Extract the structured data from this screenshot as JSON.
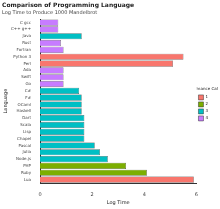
{
  "chart_data": {
    "type": "bar",
    "orientation": "horizontal",
    "title": "Comparison of Programming Language",
    "subtitle": "Log Time to Produce 1000 Mandelbrot",
    "x_label": "Log Time",
    "y_label": "Language",
    "legend": "right",
    "legend_title": "Performance Category",
    "grid": false,
    "categories": [
      "C gcc",
      "C++ g++",
      "Java",
      "Rust",
      "Fortran",
      "Python 3",
      "Perl",
      "Ada",
      "Swift",
      "Go",
      "C#",
      "F#",
      "OCaml",
      "Haskell",
      "Dart",
      "Scala",
      "Lisp",
      "Chapel",
      "Pascal",
      "Julia",
      "Node.js",
      "PHP",
      "Ruby",
      "Lua"
    ],
    "series": [
      {
        "name": "1",
        "color": "#F8766D",
        "values": [
          null,
          null,
          null,
          null,
          null,
          5.5,
          5.1,
          null,
          null,
          null,
          null,
          null,
          null,
          null,
          null,
          null,
          null,
          null,
          null,
          null,
          null,
          null,
          null,
          5.9
        ]
      },
      {
        "name": "2",
        "color": "#7CAE00",
        "values": [
          null,
          null,
          null,
          null,
          null,
          null,
          null,
          null,
          null,
          null,
          null,
          null,
          null,
          null,
          null,
          null,
          null,
          null,
          null,
          null,
          null,
          3.3,
          4.1,
          null
        ]
      },
      {
        "name": "3",
        "color": "#00BFC4",
        "values": [
          null,
          null,
          1.6,
          null,
          null,
          null,
          null,
          null,
          null,
          null,
          1.5,
          1.6,
          1.6,
          1.6,
          1.7,
          1.7,
          1.7,
          1.7,
          2.1,
          2.3,
          2.6,
          null,
          null,
          null
        ]
      },
      {
        "name": "4",
        "color": "#C77CFF",
        "values": [
          0.7,
          0.7,
          null,
          0.8,
          0.9,
          null,
          null,
          0.9,
          0.9,
          0.9,
          null,
          null,
          null,
          null,
          null,
          null,
          null,
          null,
          null,
          null,
          null,
          null,
          null,
          null
        ]
      }
    ],
    "xlim": [
      0,
      6
    ],
    "xticks": [
      0,
      2,
      4,
      6
    ]
  }
}
